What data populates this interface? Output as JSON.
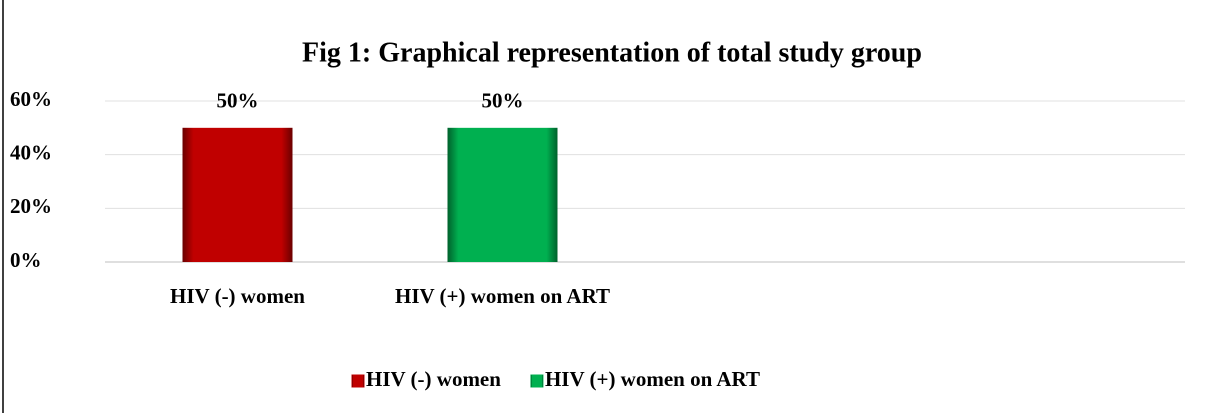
{
  "chart_data": {
    "type": "bar",
    "title": "Fig 1: Graphical representation of total study group",
    "categories": [
      "HIV (-) women",
      "HIV (+) women on ART"
    ],
    "series": [
      {
        "name": "HIV (-) women",
        "color": "#c00000",
        "values": [
          50,
          null
        ],
        "value_labels": [
          "50%",
          null
        ]
      },
      {
        "name": "HIV (+) women on ART",
        "color": "#00b050",
        "values": [
          null,
          50
        ],
        "value_labels": [
          null,
          "50%"
        ]
      }
    ],
    "ylim": [
      0,
      60
    ],
    "yticks": [
      {
        "value": 0,
        "label": "0%"
      },
      {
        "value": 20,
        "label": "20%"
      },
      {
        "value": 40,
        "label": "40%"
      },
      {
        "value": 60,
        "label": "60%"
      }
    ],
    "grid": true,
    "legend": "bottom"
  }
}
